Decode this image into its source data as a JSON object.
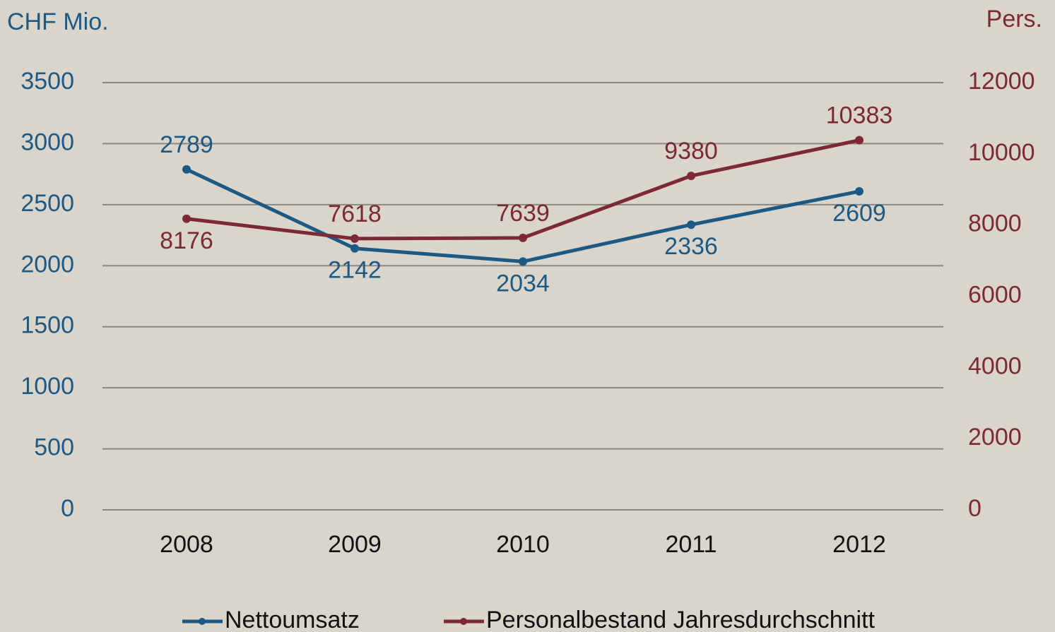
{
  "chart_data": {
    "type": "line",
    "y_label": "CHF Mio.",
    "y2_label": "Pers.",
    "categories": [
      "2008",
      "2009",
      "2010",
      "2011",
      "2012"
    ],
    "series": [
      {
        "name": "Nettoumsatz",
        "color": "#1d5985",
        "values": [
          2789,
          2142,
          2034,
          2336,
          2609
        ]
      },
      {
        "name": "Personalbestand Jahresdurchschnitt",
        "color": "#7d2935",
        "axis": "y2",
        "values": [
          8176,
          7618,
          7639,
          9380,
          10383
        ]
      }
    ],
    "ylim": [
      0,
      3500
    ],
    "yticks": [
      0,
      500,
      1000,
      1500,
      2000,
      2500,
      3000,
      3500
    ],
    "y2lim": [
      0,
      12000
    ],
    "y2ticks": [
      0,
      2000,
      4000,
      6000,
      8000,
      10000,
      12000
    ],
    "grid": true,
    "legend": "bottom"
  }
}
